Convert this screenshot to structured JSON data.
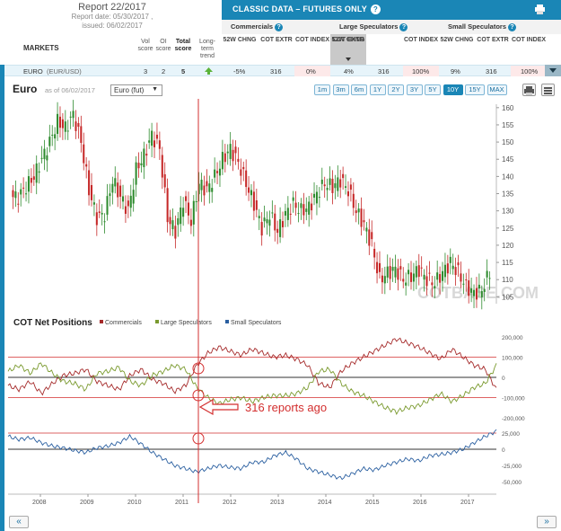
{
  "report": {
    "title": "Report 22/2017",
    "date": "Report date: 05/30/2017 ,",
    "issued": "issued: 06/02/2017"
  },
  "columns": {
    "markets": "MARKETS",
    "vol": "Vol score",
    "oi": "OI score",
    "total": "Total score",
    "trend": "Long-term trend"
  },
  "classic": {
    "title": "CLASSIC DATA – FUTURES ONLY",
    "help": "?",
    "groups": [
      "Commercials",
      "Large Speculators",
      "Small Speculators"
    ],
    "sub": [
      "52W CHNG",
      "COT EXTR",
      "COT INDEX"
    ]
  },
  "row": {
    "market": "EURO",
    "symbol": "(EUR/USD)",
    "vol": "3",
    "oi": "2",
    "total": "5",
    "comm": [
      "-5%",
      "316",
      "0%"
    ],
    "large": [
      "4%",
      "316",
      "100%"
    ],
    "small": [
      "9%",
      "316",
      "100%"
    ]
  },
  "toolbar": {
    "title": "Euro",
    "asof": "as of 06/02/2017",
    "instrument": "Euro (fut)",
    "ranges": [
      "1m",
      "3m",
      "6m",
      "1Y",
      "2Y",
      "3Y",
      "5Y",
      "10Y",
      "15Y",
      "MAX"
    ],
    "active_range": "10Y"
  },
  "chart_data": [
    {
      "type": "candlestick",
      "title": "",
      "y_ticks": [
        105,
        110,
        115,
        120,
        125,
        130,
        135,
        140,
        145,
        150,
        155,
        160
      ],
      "ylim": [
        103,
        161
      ],
      "x_ticks": [
        "2008",
        "2009",
        "2010",
        "2011",
        "2012",
        "2013",
        "2014",
        "2015",
        "2016",
        "2017"
      ],
      "close_series": [
        134,
        137,
        140,
        145,
        150,
        156,
        154,
        158,
        150,
        136,
        128,
        129,
        139,
        134,
        130,
        142,
        146,
        152,
        148,
        128,
        124,
        133,
        127,
        138,
        136,
        140,
        145,
        148,
        144,
        138,
        132,
        125,
        129,
        124,
        129,
        132,
        130,
        131,
        135,
        138,
        137,
        139,
        136,
        130,
        126,
        120,
        110,
        112,
        113,
        110,
        111,
        113,
        110,
        109,
        112,
        115,
        112,
        108,
        106,
        107,
        112
      ],
      "watermark": "COTBASE.COM"
    },
    {
      "type": "line",
      "title": "COT Net Positions",
      "series": [
        {
          "name": "Commercials",
          "color": "#a52a2a"
        },
        {
          "name": "Large Speculators",
          "color": "#7a9a2e"
        },
        {
          "name": "Small Speculators",
          "color": "#2a5fa0"
        }
      ],
      "y_ticks_top": [
        "200,000",
        "100,000",
        "0",
        "-100,000",
        "-200,000"
      ],
      "y_ticks_bottom": [
        "25,000",
        "0",
        "-25,000",
        "-50,000"
      ],
      "commercials": [
        -40,
        -60,
        -20,
        -80,
        -30,
        10,
        20,
        40,
        -20,
        -40,
        -60,
        10,
        40,
        -10,
        -30,
        -70,
        -40,
        60,
        120,
        150,
        130,
        110,
        140,
        120,
        100,
        110,
        90,
        60,
        -30,
        -50,
        30,
        70,
        100,
        130,
        160,
        190,
        170,
        150,
        120,
        90,
        140,
        100,
        60,
        40,
        -60
      ],
      "large_specs": [
        30,
        60,
        20,
        70,
        20,
        -20,
        -30,
        -60,
        20,
        30,
        50,
        -20,
        -40,
        10,
        30,
        60,
        40,
        -50,
        -100,
        -130,
        -110,
        -100,
        -120,
        -100,
        -90,
        -90,
        -80,
        -50,
        30,
        40,
        -30,
        -70,
        -90,
        -120,
        -150,
        -170,
        -150,
        -140,
        -110,
        -80,
        -120,
        -90,
        -50,
        -30,
        60
      ],
      "small_specs": [
        20,
        15,
        18,
        10,
        5,
        2,
        -2,
        -5,
        2,
        5,
        10,
        20,
        8,
        -5,
        -15,
        -25,
        -30,
        -35,
        -30,
        -25,
        -28,
        -30,
        -20,
        -20,
        -10,
        -5,
        -15,
        -30,
        -35,
        -40,
        -45,
        -38,
        -30,
        -32,
        -25,
        -20,
        -15,
        -18,
        -10,
        -8,
        -5,
        0,
        10,
        20,
        28
      ]
    }
  ],
  "annotation": {
    "text": "316 reports ago"
  },
  "colors": {
    "accent": "#1a86b6",
    "up": "#2e8b2e",
    "down": "#c62828",
    "marker": "#d32f2f"
  }
}
